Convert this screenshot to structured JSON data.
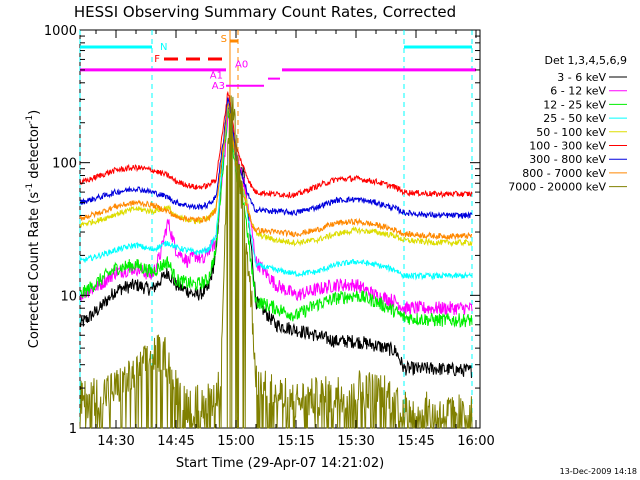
{
  "chart_data": {
    "type": "line",
    "title": "HESSI Observing Summary Count Rates, Corrected",
    "xlabel": "Start Time (29-Apr-07 14:21:02)",
    "ylabel": "Corrected Count Rate (s",
    "ylabel_sup1": "-1",
    "ylabel_mid": " detector",
    "ylabel_sup2": "-1",
    "ylabel_end": ")",
    "y_log": true,
    "ylim": [
      1,
      1000
    ],
    "xlim_minutes": [
      861,
      961
    ],
    "y_ticks": [
      {
        "value": 1,
        "label": "1"
      },
      {
        "value": 10,
        "label": "10"
      },
      {
        "value": 100,
        "label": "100"
      },
      {
        "value": 1000,
        "label": "1000"
      }
    ],
    "x_ticks": [
      {
        "value": 870,
        "label": "14:30"
      },
      {
        "value": 885,
        "label": "14:45"
      },
      {
        "value": 900,
        "label": "15:00"
      },
      {
        "value": 915,
        "label": "15:15"
      },
      {
        "value": 930,
        "label": "15:30"
      },
      {
        "value": 945,
        "label": "15:45"
      },
      {
        "value": 960,
        "label": "16:00"
      }
    ],
    "legend_title": "Det 1,3,4,5,6,9",
    "legend_position": "right",
    "series": [
      {
        "name": "3 - 6 keV",
        "color": "#000000",
        "x": [
          861,
          866,
          870,
          875,
          879,
          883,
          885,
          890,
          893,
          895,
          897,
          898,
          899,
          900,
          902,
          904,
          905,
          910,
          915,
          920,
          925,
          930,
          935,
          940,
          942,
          950,
          959
        ],
        "y": [
          6,
          8,
          11,
          12,
          11,
          15,
          12,
          10,
          11,
          20,
          150,
          290,
          150,
          100,
          80,
          20,
          9,
          6,
          5.5,
          5,
          4.5,
          4.5,
          4.2,
          3.8,
          2.8,
          2.8,
          2.7
        ]
      },
      {
        "name": "6 - 12 keV",
        "color": "#ff00ff",
        "x": [
          861,
          866,
          870,
          875,
          879,
          881,
          883,
          885,
          888,
          890,
          892,
          893,
          895,
          897,
          898,
          899,
          900,
          902,
          904,
          905,
          910,
          915,
          920,
          925,
          930,
          935,
          940,
          942,
          950,
          959
        ],
        "y": [
          10,
          12,
          15,
          16,
          14,
          20,
          36,
          22,
          18,
          20,
          18,
          22,
          25,
          100,
          220,
          210,
          120,
          70,
          30,
          18,
          12,
          10,
          11,
          12,
          12,
          10,
          9,
          8,
          8,
          8
        ]
      },
      {
        "name": "12 - 25 keV",
        "color": "#00ee00",
        "x": [
          861,
          866,
          870,
          875,
          879,
          883,
          885,
          890,
          893,
          895,
          897,
          898,
          899,
          900,
          902,
          904,
          905,
          910,
          915,
          920,
          925,
          930,
          935,
          940,
          942,
          950,
          959
        ],
        "y": [
          10,
          13,
          16,
          17,
          15,
          18,
          13,
          12,
          13,
          22,
          120,
          260,
          150,
          80,
          50,
          15,
          9,
          8,
          7,
          8.5,
          9.5,
          10,
          9,
          7.5,
          6.8,
          6.5,
          6.5
        ]
      },
      {
        "name": "25 - 50 keV",
        "color": "#00ffff",
        "x": [
          861,
          866,
          870,
          875,
          879,
          883,
          885,
          890,
          893,
          895,
          897,
          898,
          899,
          900,
          902,
          904,
          905,
          910,
          915,
          920,
          925,
          930,
          935,
          940,
          942,
          950,
          959
        ],
        "y": [
          18,
          20,
          22,
          24,
          22,
          25,
          23,
          21,
          22,
          28,
          130,
          280,
          170,
          90,
          60,
          25,
          17,
          15.5,
          14.5,
          15,
          17,
          18,
          17,
          15.5,
          14,
          14,
          14
        ]
      },
      {
        "name": "50 - 100 keV",
        "color": "#dddd00",
        "x": [
          861,
          866,
          870,
          875,
          879,
          883,
          885,
          890,
          893,
          895,
          897,
          898,
          899,
          900,
          902,
          904,
          905,
          910,
          915,
          920,
          925,
          930,
          935,
          940,
          942,
          950,
          959
        ],
        "y": [
          34,
          37,
          41,
          45,
          43,
          46,
          39,
          36,
          38,
          45,
          150,
          300,
          180,
          100,
          60,
          35,
          29,
          26,
          25,
          26,
          29,
          31,
          30,
          28,
          26,
          25,
          25
        ]
      },
      {
        "name": "100 - 300 keV",
        "color": "#ff0000",
        "x": [
          861,
          866,
          870,
          875,
          879,
          883,
          885,
          890,
          893,
          895,
          897,
          898,
          899,
          900,
          902,
          904,
          905,
          910,
          915,
          920,
          925,
          930,
          935,
          940,
          942,
          950,
          959
        ],
        "y": [
          70,
          80,
          88,
          92,
          88,
          80,
          72,
          65,
          67,
          75,
          200,
          350,
          230,
          130,
          90,
          65,
          60,
          58,
          57,
          66,
          75,
          76,
          72,
          65,
          60,
          58,
          58
        ]
      },
      {
        "name": "300 - 800 keV",
        "color": "#0000dd",
        "x": [
          861,
          866,
          870,
          875,
          879,
          883,
          885,
          890,
          893,
          895,
          897,
          898,
          899,
          900,
          902,
          904,
          905,
          910,
          915,
          920,
          925,
          930,
          935,
          940,
          942,
          950,
          959
        ],
        "y": [
          50,
          55,
          60,
          64,
          60,
          55,
          50,
          46,
          48,
          55,
          160,
          320,
          200,
          110,
          70,
          48,
          44,
          43,
          42,
          46,
          52,
          53,
          50,
          45,
          42,
          40,
          40
        ]
      },
      {
        "name": "800 - 7000 keV",
        "color": "#ff8800",
        "x": [
          861,
          866,
          870,
          875,
          879,
          883,
          885,
          890,
          893,
          895,
          897,
          898,
          899,
          900,
          902,
          904,
          905,
          910,
          915,
          920,
          925,
          930,
          935,
          940,
          942,
          950,
          959
        ],
        "y": [
          38,
          42,
          47,
          50,
          48,
          43,
          39,
          37,
          38,
          44,
          140,
          290,
          170,
          95,
          55,
          34,
          31,
          30,
          29,
          31,
          35,
          36,
          34,
          31,
          29,
          28,
          28
        ]
      },
      {
        "name": "7000 - 20000 keV",
        "color": "#808000",
        "x": [
          861,
          866,
          870,
          875,
          879,
          882,
          885,
          888,
          892,
          896,
          898,
          899,
          900,
          902,
          904,
          905,
          910,
          915,
          920,
          925,
          930,
          935,
          940,
          942,
          950,
          959
        ],
        "y": [
          1.6,
          1.8,
          2.0,
          2.5,
          3.5,
          3.8,
          2.0,
          1.5,
          1.5,
          2.0,
          150,
          280,
          150,
          40,
          8,
          2.5,
          1.8,
          1.6,
          1.7,
          1.8,
          2.0,
          1.9,
          1.7,
          1.4,
          1.3,
          1.3
        ]
      }
    ],
    "annotations": {
      "night": {
        "label": "N",
        "color": "#00ffff",
        "spans": [
          [
            861,
            879
          ],
          [
            942,
            959
          ]
        ]
      },
      "saa": {
        "label": "S",
        "color": "#ff8800",
        "x_start": 898.5,
        "x_end": 900.5
      },
      "flare": {
        "label": "F",
        "color": "#ff0000",
        "x_start": 882,
        "x_end": 898
      },
      "attenuator": {
        "labels": [
          "A1",
          "A3",
          "A0"
        ],
        "color": "#ff00ff"
      },
      "decimation": {
        "color": "#ff00ff",
        "y": 500
      }
    },
    "timestamp": "13-Dec-2009 14:18"
  }
}
